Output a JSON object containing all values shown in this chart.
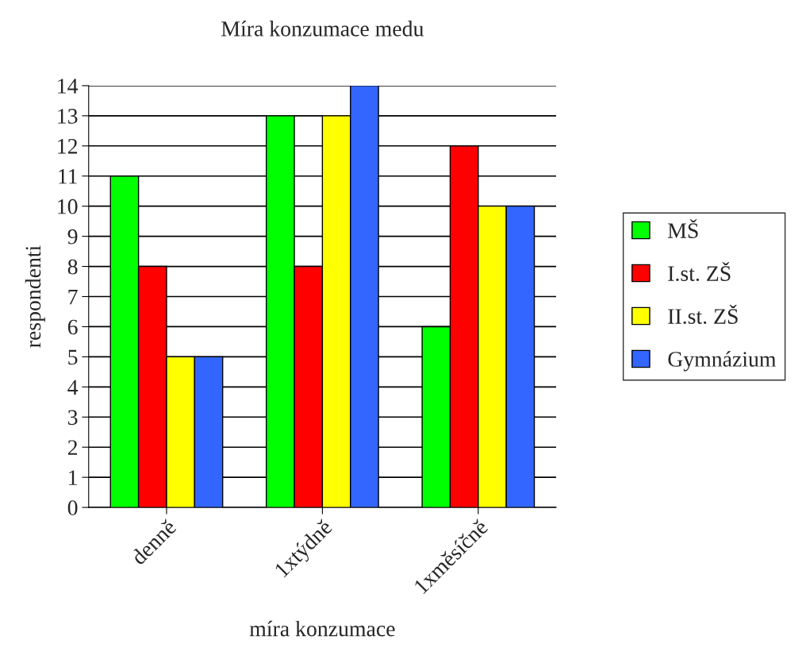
{
  "chart_data": {
    "type": "bar",
    "title": "Míra konzumace medu",
    "xlabel": "míra konzumace",
    "ylabel": "respondenti",
    "categories": [
      "denně",
      "1xtýdně",
      "1xměsíčně"
    ],
    "series": [
      {
        "name": "MŠ",
        "color": "#00ff00",
        "values": [
          11,
          13,
          6
        ]
      },
      {
        "name": "I.st. ZŠ",
        "color": "#ff0000",
        "values": [
          8,
          8,
          12
        ]
      },
      {
        "name": "II.st. ZŠ",
        "color": "#ffff00",
        "values": [
          5,
          13,
          10
        ]
      },
      {
        "name": "Gymnázium",
        "color": "#3366ff",
        "values": [
          5,
          14,
          10
        ]
      }
    ],
    "ylim": [
      0,
      14
    ],
    "yticks": [
      0,
      1,
      2,
      3,
      4,
      5,
      6,
      7,
      8,
      9,
      10,
      11,
      12,
      13,
      14
    ],
    "grid": "y",
    "legend": "right"
  }
}
